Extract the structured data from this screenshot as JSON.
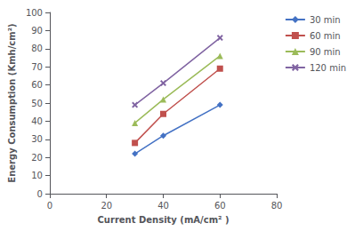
{
  "chart_data": {
    "type": "line",
    "xlabel": "Current Density (mA/cm² )",
    "ylabel": "Energy Consumption (Kmh/cm²)",
    "x": [
      30,
      40,
      60
    ],
    "series": [
      {
        "name": "30 min",
        "color": "#4472C4",
        "values": [
          22,
          32,
          49
        ],
        "marker": "diamond",
        "line_style": "solid"
      },
      {
        "name": "60 min",
        "color": "#C0504D",
        "values": [
          28,
          44,
          69
        ],
        "marker": "square",
        "line_style": "solid"
      },
      {
        "name": "90 min",
        "color": "#9BBB59",
        "values": [
          39,
          52,
          76
        ],
        "marker": "triangle",
        "line_style": "solid"
      },
      {
        "name": "120 min",
        "color": "#8064A2",
        "values": [
          49,
          61,
          86
        ],
        "marker": "x",
        "line_style": "solid"
      }
    ],
    "xlim": [
      0,
      80
    ],
    "xticks": [
      0,
      20,
      40,
      60,
      80
    ],
    "ylim": [
      0,
      100
    ],
    "yticks": [
      0,
      10,
      20,
      30,
      40,
      50,
      60,
      70,
      80,
      90,
      100
    ],
    "grid": false,
    "legend": "upper right"
  }
}
